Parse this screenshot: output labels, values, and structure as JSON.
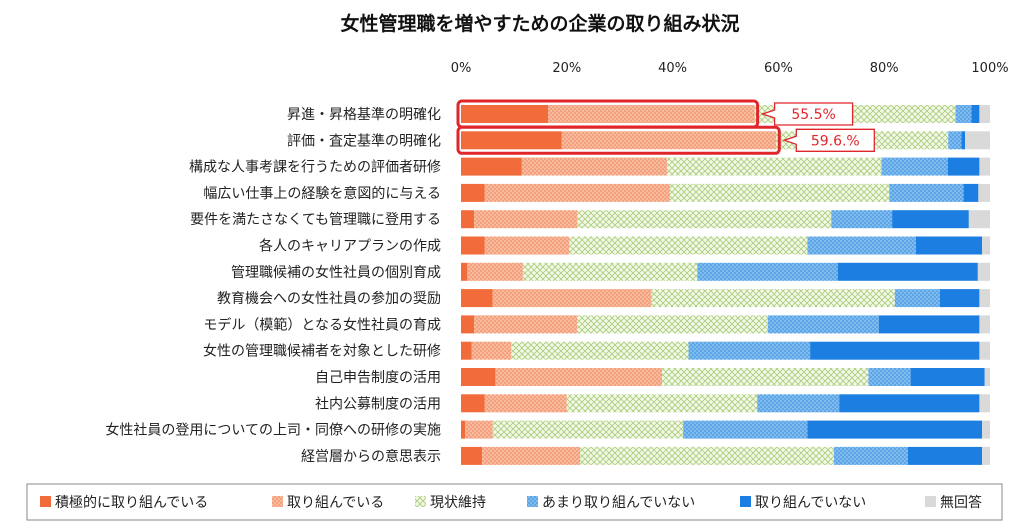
{
  "chart_data": {
    "type": "bar",
    "orientation": "horizontal",
    "stacked": true,
    "percent_stacked": true,
    "title": "女性管理職を増やすための企業の取り組み状況",
    "xlabel": "",
    "ylabel": "",
    "xlim": [
      0,
      100
    ],
    "x_ticks": [
      "0%",
      "20%",
      "40%",
      "60%",
      "80%",
      "100%"
    ],
    "grid": false,
    "legend_position": "bottom",
    "categories": [
      "昇進・昇格基準の明確化",
      "評価・査定基準の明確化",
      "構成な人事考課を行うための評価者研修",
      "幅広い仕事上の経験を意図的に与える",
      "要件を満たさなくても管理職に登用する",
      "各人のキャリアプランの作成",
      "管理職候補の女性社員の個別育成",
      "教育機会への女性社員の参加の奨励",
      "モデル（模範）となる女性社員の育成",
      "女性の管理職候補者を対象とした研修",
      "自己申告制度の活用",
      "社内公募制度の活用",
      "女性社員の登用についての上司・同僚への研修の実施",
      "経営層からの意思表示"
    ],
    "series": [
      {
        "name": "積極的に取り組んでいる",
        "color": "#f26b3a",
        "pattern": "solid",
        "values": [
          16.5,
          19.0,
          11.5,
          4.5,
          2.5,
          4.5,
          1.2,
          6.0,
          2.5,
          2.0,
          6.5,
          4.5,
          0.8,
          4.0
        ]
      },
      {
        "name": "取り組んでいる",
        "color": "#f4a07a",
        "pattern": "dots",
        "values": [
          39.0,
          40.6,
          27.5,
          35.0,
          19.5,
          16.0,
          10.5,
          30.0,
          19.5,
          7.5,
          31.5,
          15.5,
          5.2,
          18.5
        ]
      },
      {
        "name": "現状維持",
        "color": "#c6dea0",
        "pattern": "cross",
        "values": [
          38.0,
          32.5,
          40.5,
          41.5,
          48.0,
          45.0,
          33.0,
          46.0,
          36.0,
          33.5,
          39.0,
          36.0,
          36.0,
          48.0
        ]
      },
      {
        "name": "あまり取り組んでいない",
        "color": "#5aa6e8",
        "pattern": "dots",
        "values": [
          3.0,
          2.5,
          12.5,
          14.0,
          11.5,
          20.5,
          26.5,
          8.5,
          21.0,
          23.0,
          8.0,
          15.5,
          23.5,
          14.0
        ]
      },
      {
        "name": "取り組んでいない",
        "color": "#1c7ee0",
        "pattern": "solid",
        "values": [
          1.5,
          0.7,
          6.0,
          2.8,
          14.5,
          12.5,
          26.5,
          7.5,
          19.0,
          32.0,
          14.0,
          26.5,
          33.0,
          14.0
        ]
      },
      {
        "name": "無回答",
        "color": "#d9d9d9",
        "pattern": "solid",
        "values": [
          2.0,
          4.7,
          2.0,
          2.2,
          4.0,
          1.5,
          2.3,
          2.0,
          2.0,
          2.0,
          1.0,
          2.0,
          1.5,
          1.5
        ]
      }
    ],
    "annotations": [
      {
        "category_index": 0,
        "label": "55.5%",
        "highlight": true,
        "highlight_color": "#e0262b"
      },
      {
        "category_index": 1,
        "label": "59.6.%",
        "highlight": true,
        "highlight_color": "#e0262b"
      }
    ]
  }
}
